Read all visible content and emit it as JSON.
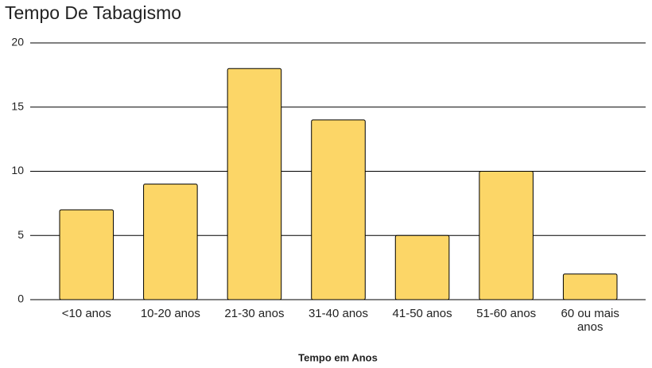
{
  "chart_data": {
    "type": "bar",
    "title": "Tempo De Tabagismo",
    "x_label": "Tempo em Anos",
    "categories": [
      "<10 anos",
      "10-20 anos",
      "21-30 anos",
      "31-40 anos",
      "41-50 anos",
      "51-60 anos",
      "60 ou mais anos"
    ],
    "values": [
      7,
      9,
      18,
      14,
      5,
      10,
      2
    ],
    "color": "#fcd667",
    "ylim": [
      0,
      20
    ],
    "yticks": [
      0,
      5,
      10,
      15,
      20
    ],
    "grid": true
  }
}
